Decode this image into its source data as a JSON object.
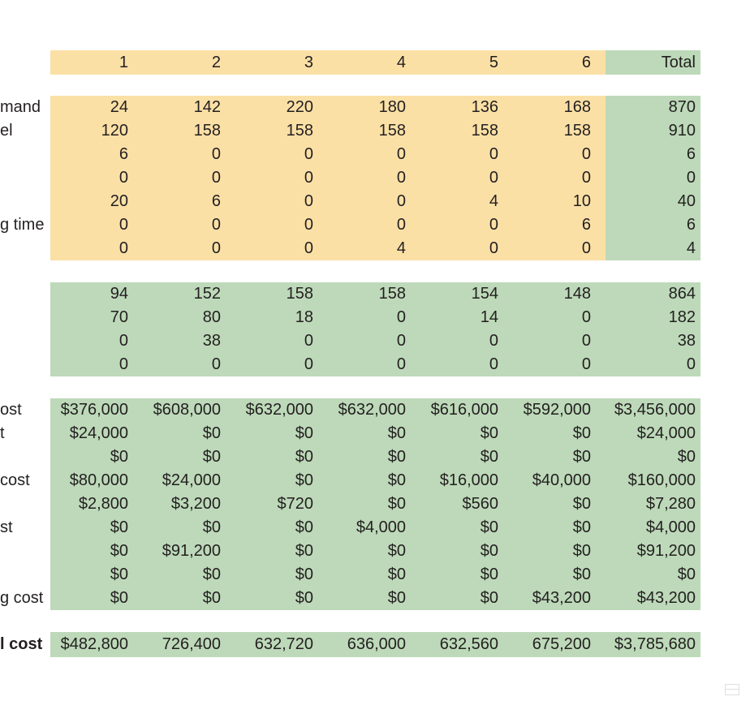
{
  "palette": {
    "yellow": "#fbe0a6",
    "green": "#bdd9b9",
    "text": "#231f20",
    "background": "#ffffff"
  },
  "table": {
    "header": {
      "columns": [
        "1",
        "2",
        "3",
        "4",
        "5",
        "6"
      ],
      "total_label": "Total"
    },
    "blocks": [
      {
        "name": "plan-values",
        "bg": "yellow",
        "rows": [
          {
            "label": "mand",
            "values": [
              "24",
              "142",
              "220",
              "180",
              "136",
              "168"
            ],
            "total": "870"
          },
          {
            "label": "el",
            "values": [
              "120",
              "158",
              "158",
              "158",
              "158",
              "158"
            ],
            "total": "910"
          },
          {
            "label": "",
            "values": [
              "6",
              "0",
              "0",
              "0",
              "0",
              "0"
            ],
            "total": "6"
          },
          {
            "label": "",
            "values": [
              "0",
              "0",
              "0",
              "0",
              "0",
              "0"
            ],
            "total": "0"
          },
          {
            "label": "",
            "values": [
              "20",
              "6",
              "0",
              "0",
              "4",
              "10"
            ],
            "total": "40"
          },
          {
            "label": "g time",
            "values": [
              "0",
              "0",
              "0",
              "0",
              "0",
              "6"
            ],
            "total": "6"
          },
          {
            "label": "",
            "values": [
              "0",
              "0",
              "0",
              "4",
              "0",
              "0"
            ],
            "total": "4"
          }
        ]
      },
      {
        "name": "production-values",
        "bg": "green",
        "rows": [
          {
            "label": "",
            "values": [
              "94",
              "152",
              "158",
              "158",
              "154",
              "148"
            ],
            "total": "864"
          },
          {
            "label": "",
            "values": [
              "70",
              "80",
              "18",
              "0",
              "14",
              "0"
            ],
            "total": "182"
          },
          {
            "label": "",
            "values": [
              "0",
              "38",
              "0",
              "0",
              "0",
              "0"
            ],
            "total": "38"
          },
          {
            "label": "",
            "values": [
              "0",
              "0",
              "0",
              "0",
              "0",
              "0"
            ],
            "total": "0"
          }
        ]
      },
      {
        "name": "cost-values",
        "bg": "green",
        "rows": [
          {
            "label": "ost",
            "values": [
              "$376,000",
              "$608,000",
              "$632,000",
              "$632,000",
              "$616,000",
              "$592,000"
            ],
            "total": "$3,456,000"
          },
          {
            "label": "t",
            "values": [
              "$24,000",
              "$0",
              "$0",
              "$0",
              "$0",
              "$0"
            ],
            "total": "$24,000"
          },
          {
            "label": "",
            "values": [
              "$0",
              "$0",
              "$0",
              "$0",
              "$0",
              "$0"
            ],
            "total": "$0"
          },
          {
            "label": "cost",
            "values": [
              "$80,000",
              "$24,000",
              "$0",
              "$0",
              "$16,000",
              "$40,000"
            ],
            "total": "$160,000"
          },
          {
            "label": "",
            "values": [
              "$2,800",
              "$3,200",
              "$720",
              "$0",
              "$560",
              "$0"
            ],
            "total": "$7,280"
          },
          {
            "label": "st",
            "values": [
              "$0",
              "$0",
              "$0",
              "$4,000",
              "$0",
              "$0"
            ],
            "total": "$4,000"
          },
          {
            "label": "",
            "values": [
              "$0",
              "$91,200",
              "$0",
              "$0",
              "$0",
              "$0"
            ],
            "total": "$91,200"
          },
          {
            "label": "",
            "values": [
              "$0",
              "$0",
              "$0",
              "$0",
              "$0",
              "$0"
            ],
            "total": "$0"
          },
          {
            "label": "g cost",
            "values": [
              "$0",
              "$0",
              "$0",
              "$0",
              "$0",
              "$43,200"
            ],
            "total": "$43,200"
          }
        ]
      }
    ],
    "grand_total": {
      "label": "l cost",
      "values": [
        "$482,800",
        "726,400",
        "632,720",
        "636,000",
        "632,560",
        "675,200"
      ],
      "total": "$3,785,680"
    }
  }
}
